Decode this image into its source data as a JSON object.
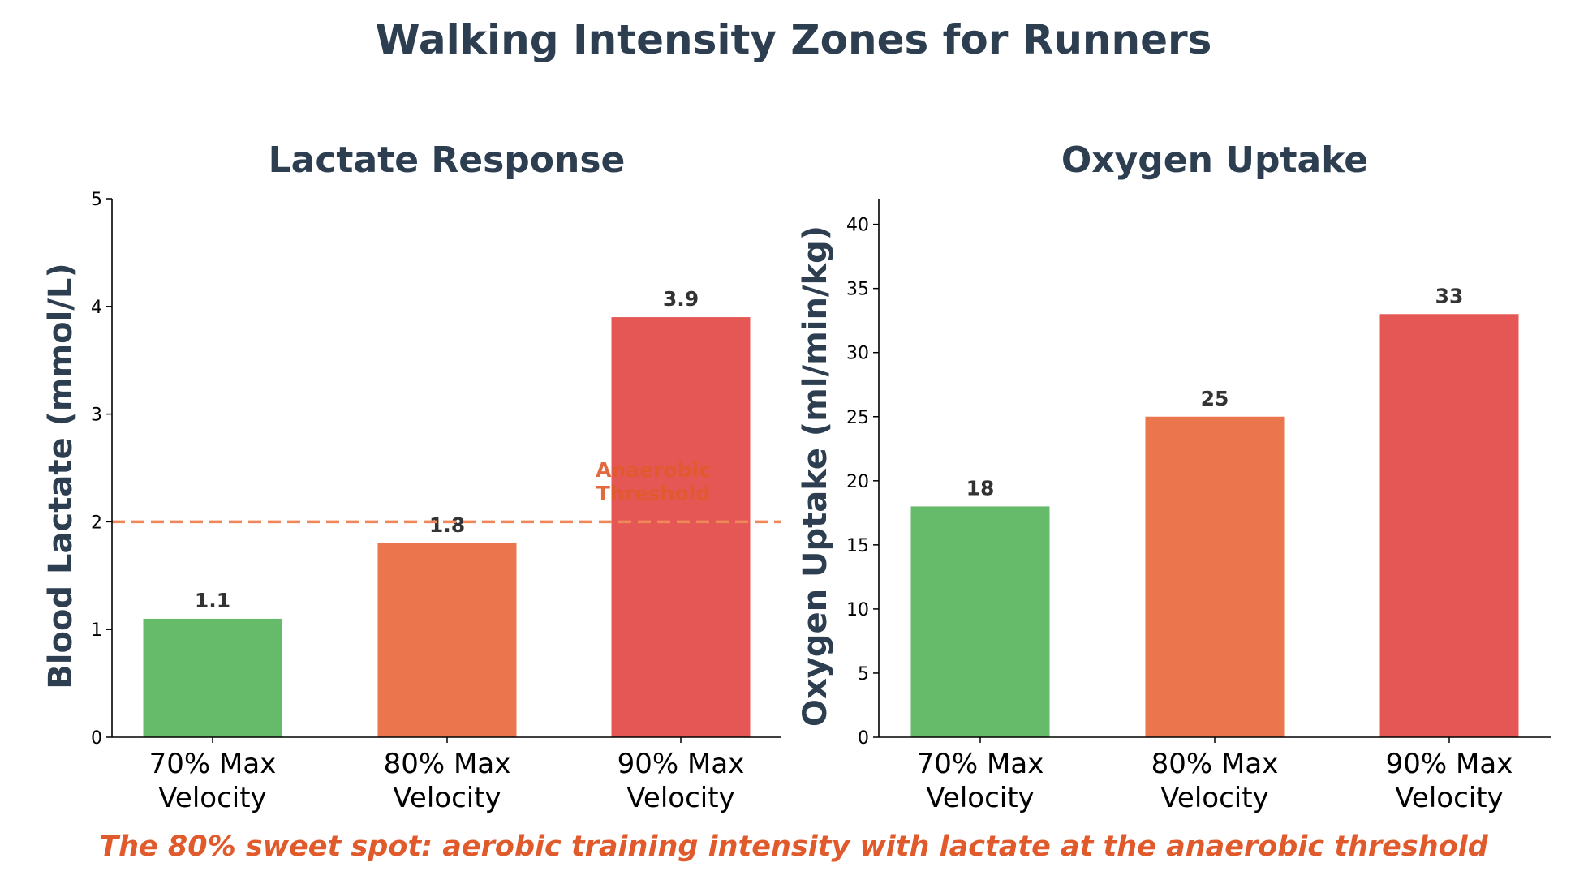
{
  "title": "Walking Intensity Zones for Runners",
  "footer": "The 80% sweet spot: aerobic training intensity with lactate at the anaerobic threshold",
  "colors": {
    "title": "#2c3e50",
    "footer": "#e05a2b",
    "bars": [
      "#66bb6a",
      "#eb754d",
      "#e55755"
    ],
    "threshold": "#f0875a"
  },
  "chart_data": [
    {
      "type": "bar",
      "title": "Lactate Response",
      "ylabel": "Blood Lactate (mmol/L)",
      "xlabel": "",
      "categories": [
        [
          "70% Max",
          "Velocity"
        ],
        [
          "80% Max",
          "Velocity"
        ],
        [
          "90% Max",
          "Velocity"
        ]
      ],
      "values": [
        1.1,
        1.8,
        3.9
      ],
      "value_labels": [
        "1.1",
        "1.8",
        "3.9"
      ],
      "ylim": [
        0,
        5
      ],
      "yticks": [
        0,
        1,
        2,
        3,
        4,
        5
      ],
      "grid": false,
      "reference_line": {
        "y": 2,
        "style": "dashed",
        "label": [
          "Anaerobic",
          "Threshold"
        ]
      }
    },
    {
      "type": "bar",
      "title": "Oxygen Uptake",
      "ylabel": "Oxygen Uptake (ml/min/kg)",
      "xlabel": "",
      "categories": [
        [
          "70% Max",
          "Velocity"
        ],
        [
          "80% Max",
          "Velocity"
        ],
        [
          "90% Max",
          "Velocity"
        ]
      ],
      "values": [
        18,
        25,
        33
      ],
      "value_labels": [
        "18",
        "25",
        "33"
      ],
      "ylim": [
        0,
        42
      ],
      "yticks": [
        0,
        5,
        10,
        15,
        20,
        25,
        30,
        35,
        40
      ],
      "grid": false
    }
  ]
}
